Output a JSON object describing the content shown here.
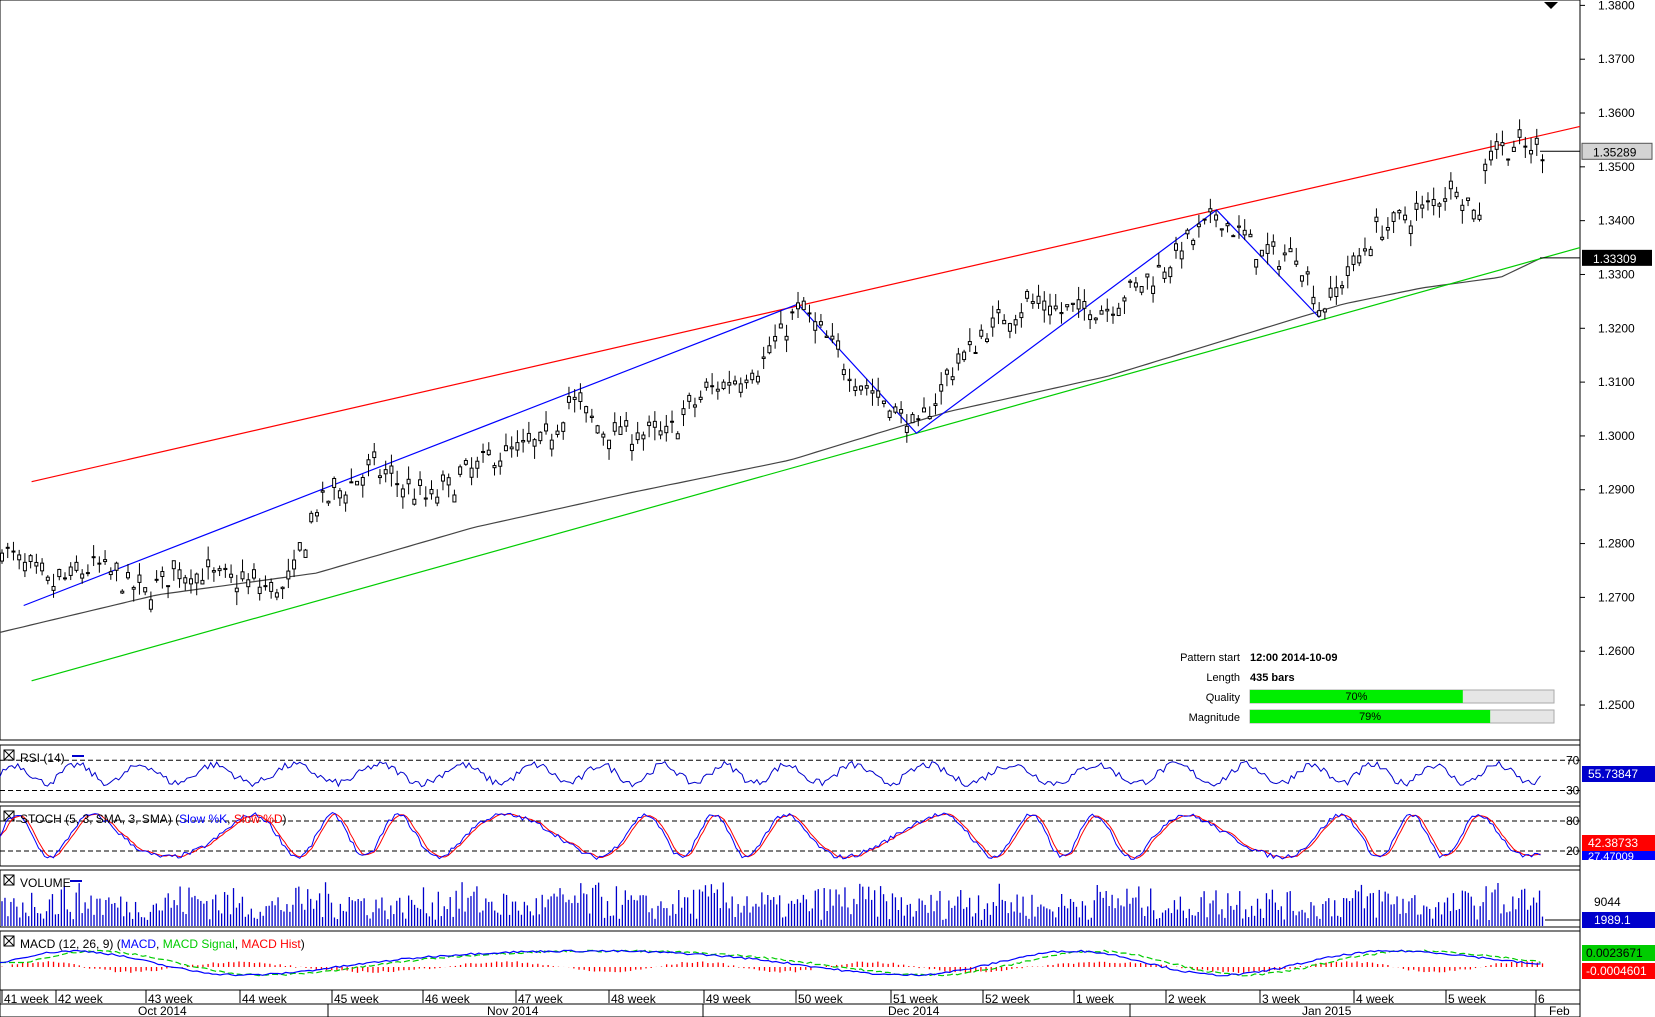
{
  "chart_data": {
    "type": "candlestick",
    "main": {
      "y_ticks": [
        "1.3800",
        "1.3700",
        "1.3600",
        "1.3500",
        "1.3400",
        "1.3300",
        "1.3200",
        "1.3100",
        "1.3000",
        "1.2900",
        "1.2800",
        "1.2700",
        "1.2600",
        "1.2500"
      ],
      "ylim": [
        1.2435,
        1.381
      ],
      "current_price": "1.35289",
      "ma_value": "1.33309",
      "colors": {
        "candles": "#000000",
        "channel_upper": "#ff0000",
        "channel_lower": "#00cc00",
        "zigzag": "#0000ff",
        "moving_average": "#444444",
        "price_label_bg": "#d4d4d4",
        "ma_label_bg": "#000000"
      },
      "channel_upper": [
        [
          0.02,
          1.2915
        ],
        [
          1.0,
          1.3575
        ]
      ],
      "channel_lower": [
        [
          0.02,
          1.2545
        ],
        [
          1.0,
          1.335
        ]
      ],
      "zigzag": [
        [
          0.015,
          1.2685
        ],
        [
          0.505,
          1.3245
        ],
        [
          0.58,
          1.3005
        ],
        [
          0.77,
          1.342
        ],
        [
          0.835,
          1.322
        ]
      ],
      "price_path": [
        [
          0.0,
          1.279
        ],
        [
          0.03,
          1.272
        ],
        [
          0.06,
          1.276
        ],
        [
          0.09,
          1.2705
        ],
        [
          0.11,
          1.275
        ],
        [
          0.15,
          1.273
        ],
        [
          0.18,
          1.271
        ],
        [
          0.2,
          1.287
        ],
        [
          0.235,
          1.294
        ],
        [
          0.27,
          1.288
        ],
        [
          0.31,
          1.296
        ],
        [
          0.345,
          1.299
        ],
        [
          0.36,
          1.307
        ],
        [
          0.38,
          1.301
        ],
        [
          0.42,
          1.3
        ],
        [
          0.445,
          1.308
        ],
        [
          0.48,
          1.313
        ],
        [
          0.505,
          1.324
        ],
        [
          0.54,
          1.311
        ],
        [
          0.58,
          1.301
        ],
        [
          0.6,
          1.312
        ],
        [
          0.625,
          1.32
        ],
        [
          0.65,
          1.325
        ],
        [
          0.67,
          1.323
        ],
        [
          0.7,
          1.324
        ],
        [
          0.73,
          1.33
        ],
        [
          0.77,
          1.341
        ],
        [
          0.8,
          1.333
        ],
        [
          0.82,
          1.334
        ],
        [
          0.835,
          1.323
        ],
        [
          0.87,
          1.338
        ],
        [
          0.9,
          1.342
        ],
        [
          0.92,
          1.347
        ],
        [
          0.935,
          1.34
        ],
        [
          0.94,
          1.354
        ],
        [
          0.975,
          1.353
        ]
      ],
      "ma_path": [
        [
          0.0,
          1.2635
        ],
        [
          0.1,
          1.2705
        ],
        [
          0.2,
          1.2745
        ],
        [
          0.3,
          1.283
        ],
        [
          0.4,
          1.2895
        ],
        [
          0.5,
          1.2955
        ],
        [
          0.6,
          1.3045
        ],
        [
          0.7,
          1.311
        ],
        [
          0.8,
          1.32
        ],
        [
          0.85,
          1.3245
        ],
        [
          0.9,
          1.3275
        ],
        [
          0.95,
          1.3295
        ],
        [
          0.975,
          1.333
        ]
      ]
    },
    "pattern_info": {
      "rows": [
        {
          "label": "Pattern start",
          "value": "12:00 2014-10-09"
        },
        {
          "label": "Length",
          "value": "435 bars"
        }
      ],
      "quality": {
        "label": "Quality",
        "value": "70%",
        "fraction": 0.7
      },
      "magnitude": {
        "label": "Magnitude",
        "value": "79%",
        "fraction": 0.79
      },
      "bar_color": "#00ee00"
    },
    "rsi": {
      "title": "RSI (14)",
      "levels": [
        "70",
        "30"
      ],
      "value": "55.73847",
      "color": "#0000cc",
      "value_bg": "#0000cc"
    },
    "stoch": {
      "title_prefix": "STOCH (5, 3, SMA, 3, SMA) (",
      "k_label": "Slow %K",
      "sep": ", ",
      "d_label": "Slow %D",
      "title_suffix": ")",
      "levels": [
        "80",
        "20"
      ],
      "value_main": "42.38733",
      "value_sub": "27.47009",
      "k_color": "#0000ff",
      "d_color": "#ff0000",
      "value_bg": "#ff0000"
    },
    "volume": {
      "title": "VOLUME",
      "level": "9044",
      "value": "1989.1",
      "color": "#0000cc"
    },
    "macd": {
      "title_prefix": "MACD (12, 26, 9) (",
      "macd_label": "MACD",
      "sep": ", ",
      "signal_label": "MACD Signal",
      "hist_label": "MACD Hist",
      "title_suffix": ")",
      "value_macd": "0.0023671",
      "value_hist": "-0.0004601",
      "macd_color": "#0000ff",
      "signal_color": "#00cc00",
      "hist_color": "#ff0000",
      "value_macd_bg": "#00cc00",
      "value_hist_bg": "#ff0000"
    },
    "x_weeks": [
      "41 week",
      "42 week",
      "43 week",
      "44 week",
      "45 week",
      "46 week",
      "47 week",
      "48 week",
      "49 week",
      "50 week",
      "51 week",
      "52 week",
      "1 week",
      "2 week",
      "3 week",
      "4 week",
      "5 week",
      "6"
    ],
    "x_months": [
      "Oct 2014",
      "Nov 2014",
      "Dec 2014",
      "Jan 2015",
      "Feb"
    ]
  }
}
